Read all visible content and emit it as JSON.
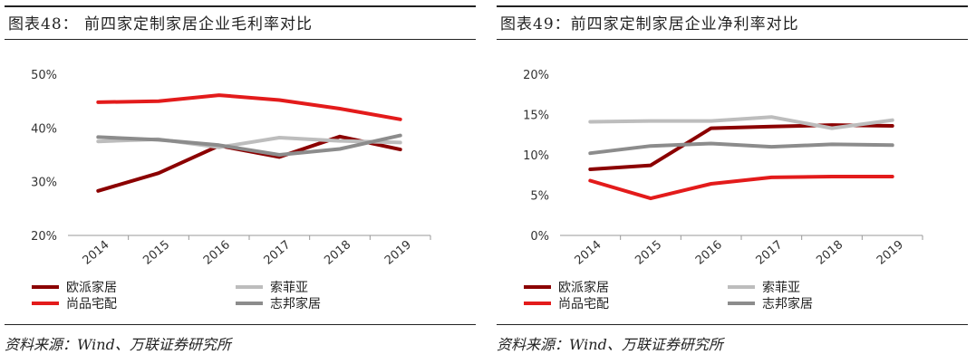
{
  "left": {
    "title": "图表48：  前四家定制家居企业毛利率对比",
    "source": "资料来源：Wind、万联证券研究所"
  },
  "right": {
    "title": "图表49：前四家定制家居企业净利率对比",
    "source": "资料来源：Wind、万联证券研究所"
  },
  "colors": {
    "oupai": "#8b0000",
    "suofeiya": "#bdbdbd",
    "shangpin": "#e31b1b",
    "zhibang": "#8c8c8c"
  },
  "chart_data": [
    {
      "type": "line",
      "title": "前四家定制家居企业毛利率对比",
      "categories": [
        "2014",
        "2015",
        "2016",
        "2017",
        "2018",
        "2019"
      ],
      "ylim": [
        20,
        50
      ],
      "yticks": [
        20,
        30,
        40,
        50
      ],
      "ytick_labels": [
        "20%",
        "30%",
        "40%",
        "50%"
      ],
      "series": [
        {
          "name": "欧派家居",
          "color_key": "oupai",
          "values": [
            28.3,
            31.6,
            36.7,
            34.6,
            38.4,
            36.0
          ]
        },
        {
          "name": "索菲亚",
          "color_key": "suofeiya",
          "values": [
            37.5,
            37.9,
            36.4,
            38.2,
            37.6,
            37.3
          ]
        },
        {
          "name": "尚品宅配",
          "color_key": "shangpin",
          "values": [
            44.8,
            45.0,
            46.1,
            45.2,
            43.6,
            41.6
          ]
        },
        {
          "name": "志邦家居",
          "color_key": "zhibang",
          "values": [
            38.3,
            37.8,
            36.8,
            35.0,
            36.1,
            38.6
          ]
        }
      ]
    },
    {
      "type": "line",
      "title": "前四家定制家居企业净利率对比",
      "categories": [
        "2014",
        "2015",
        "2016",
        "2017",
        "2018",
        "2019"
      ],
      "ylim": [
        0,
        20
      ],
      "yticks": [
        0,
        5,
        10,
        15,
        20
      ],
      "ytick_labels": [
        "0%",
        "5%",
        "10%",
        "15%",
        "20%"
      ],
      "series": [
        {
          "name": "欧派家居",
          "color_key": "oupai",
          "values": [
            8.2,
            8.7,
            13.3,
            13.5,
            13.7,
            13.6
          ]
        },
        {
          "name": "索菲亚",
          "color_key": "suofeiya",
          "values": [
            14.1,
            14.2,
            14.2,
            14.7,
            13.3,
            14.3
          ]
        },
        {
          "name": "尚品宅配",
          "color_key": "shangpin",
          "values": [
            6.8,
            4.6,
            6.4,
            7.2,
            7.3,
            7.3
          ]
        },
        {
          "name": "志邦家居",
          "color_key": "zhibang",
          "values": [
            10.2,
            11.1,
            11.4,
            11.0,
            11.3,
            11.2
          ]
        }
      ]
    }
  ]
}
